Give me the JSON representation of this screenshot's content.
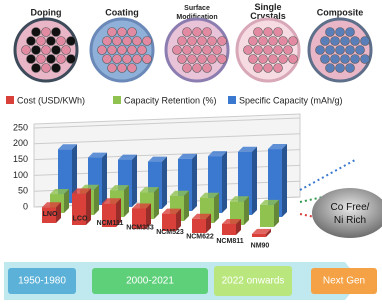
{
  "diagram": {
    "labels": [
      "Doping",
      "Coating",
      "Surface Modification",
      "Single Crystals",
      "Composite"
    ]
  },
  "chart_data": {
    "type": "bar",
    "categories": [
      "LNO",
      "LCO",
      "NCM111",
      "NCM333",
      "NCM523",
      "NCM622",
      "NCM811",
      "NM90"
    ],
    "series": [
      {
        "name": "Cost (USD/KWh)",
        "color": "#d9403a",
        "values": [
          50,
          100,
          75,
          65,
          55,
          45,
          35,
          10
        ]
      },
      {
        "name": "Capacity Retention (%)",
        "color": "#8fc24f",
        "values": [
          60,
          80,
          85,
          85,
          80,
          80,
          75,
          70
        ]
      },
      {
        "name": "Specific Capacity (mAh/g)",
        "color": "#3b78d0",
        "values": [
          170,
          150,
          150,
          150,
          165,
          180,
          200,
          215
        ]
      }
    ],
    "ylim": [
      0,
      250
    ],
    "yticks": [
      0,
      50,
      100,
      150,
      200,
      250
    ],
    "grid": true,
    "annotation": "Co Free/Ni Rich"
  },
  "timeline": [
    "1950-1980",
    "2000-2021",
    "2022 onwards",
    "Next Gen"
  ]
}
